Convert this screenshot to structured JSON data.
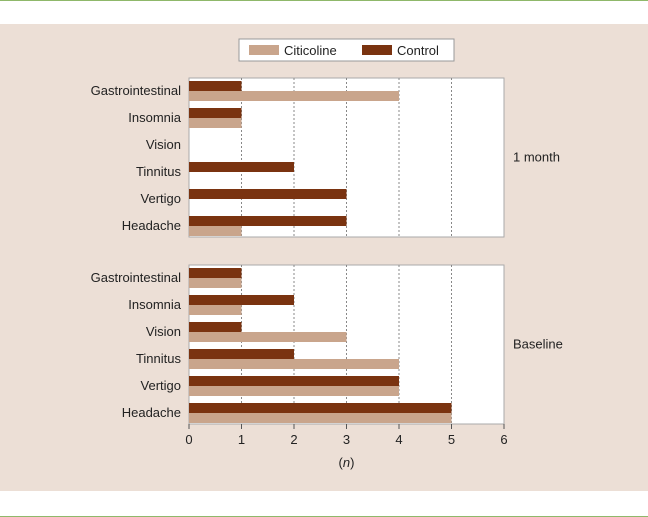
{
  "chart_data": {
    "type": "bar",
    "orientation": "horizontal",
    "legend": {
      "placement": "top-center",
      "entries": [
        "Citicoline",
        "Control"
      ]
    },
    "xlabel": "(n)",
    "xlim": [
      0,
      6
    ],
    "xticks": [
      0,
      1,
      2,
      3,
      4,
      5,
      6
    ],
    "grid": "vertical dashed",
    "colors": {
      "Citicoline": "#c9a58c",
      "Control": "#7a3310"
    },
    "panels": [
      {
        "label": "1 month",
        "categories": [
          "Gastrointestinal",
          "Insomnia",
          "Vision",
          "Tinnitus",
          "Vertigo",
          "Headache"
        ],
        "series": [
          {
            "name": "Control",
            "values": [
              1,
              1,
              0,
              2,
              3,
              3
            ]
          },
          {
            "name": "Citicoline",
            "values": [
              4,
              1,
              0,
              0,
              0,
              1
            ]
          }
        ]
      },
      {
        "label": "Baseline",
        "categories": [
          "Gastrointestinal",
          "Insomnia",
          "Vision",
          "Tinnitus",
          "Vertigo",
          "Headache"
        ],
        "series": [
          {
            "name": "Control",
            "values": [
              1,
              2,
              1,
              2,
              4,
              5
            ]
          },
          {
            "name": "Citicoline",
            "values": [
              1,
              1,
              3,
              4,
              4,
              5
            ]
          }
        ]
      }
    ]
  }
}
